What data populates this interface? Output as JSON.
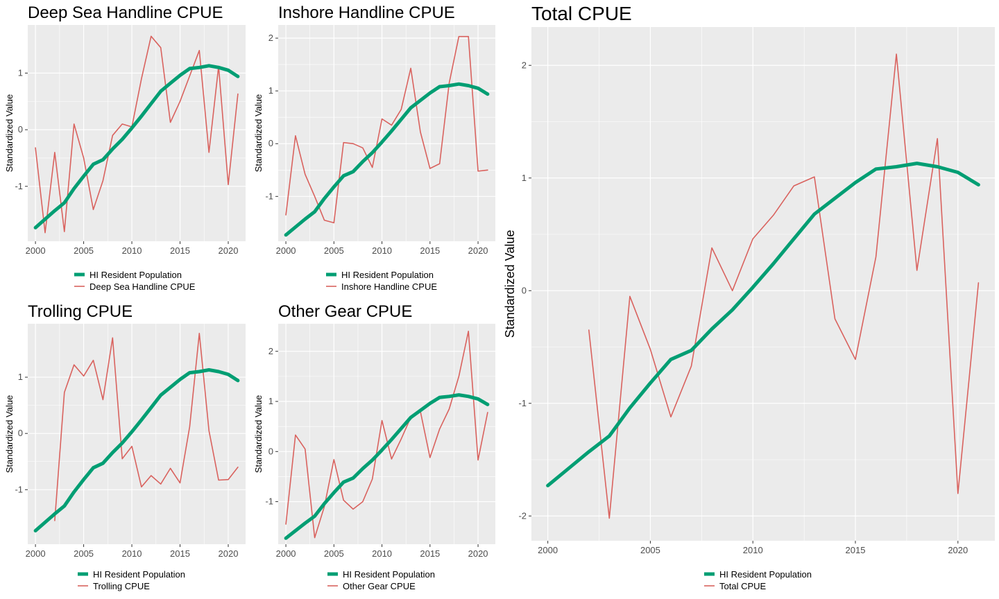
{
  "colors": {
    "population": "#009E73",
    "cpue": "#D9625E",
    "panel_bg": "#EBEBEB",
    "grid": "#FFFFFF",
    "tick_text": "#4D4D4D"
  },
  "chart_data": [
    {
      "type": "line",
      "title": "Deep Sea Handline CPUE",
      "ylabel": "Standardized Value",
      "xlabel": "",
      "xlim": [
        1999.2,
        2021.8
      ],
      "ylim": [
        -1.97,
        1.85
      ],
      "xticks": [
        2000,
        2005,
        2010,
        2015,
        2020
      ],
      "yticks": [
        -1,
        0,
        1
      ],
      "grid": true,
      "legend_position": "bottom",
      "series": [
        {
          "name": "HI Resident Population",
          "x": [
            2000,
            2001,
            2002,
            2003,
            2004,
            2005,
            2006,
            2007,
            2008,
            2009,
            2010,
            2011,
            2012,
            2013,
            2014,
            2015,
            2016,
            2017,
            2018,
            2019,
            2020,
            2021
          ],
          "values": [
            -1.73,
            -1.58,
            -1.43,
            -1.29,
            -1.04,
            -0.82,
            -0.61,
            -0.53,
            -0.34,
            -0.17,
            0.03,
            0.24,
            0.46,
            0.68,
            0.82,
            0.96,
            1.08,
            1.1,
            1.13,
            1.1,
            1.05,
            0.94
          ]
        },
        {
          "name": "Deep Sea Handline CPUE",
          "x": [
            2000,
            2001,
            2002,
            2003,
            2004,
            2005,
            2006,
            2007,
            2008,
            2009,
            2010,
            2011,
            2012,
            2013,
            2014,
            2015,
            2016,
            2017,
            2018,
            2019,
            2020,
            2021
          ],
          "values": [
            -0.32,
            -1.82,
            -0.4,
            -1.8,
            0.1,
            -0.5,
            -1.41,
            -0.9,
            -0.1,
            0.1,
            0.05,
            0.9,
            1.65,
            1.45,
            0.13,
            0.5,
            0.95,
            1.4,
            -0.4,
            1.12,
            -0.97,
            0.63
          ]
        }
      ]
    },
    {
      "type": "line",
      "title": "Inshore Handline CPUE",
      "ylabel": "Standardized Value",
      "xlabel": "",
      "xlim": [
        1999.2,
        2021.8
      ],
      "ylim": [
        -1.85,
        2.25
      ],
      "xticks": [
        2000,
        2005,
        2010,
        2015,
        2020
      ],
      "yticks": [
        -1,
        0,
        1,
        2
      ],
      "grid": true,
      "legend_position": "bottom",
      "series": [
        {
          "name": "HI Resident Population",
          "x": [
            2000,
            2001,
            2002,
            2003,
            2004,
            2005,
            2006,
            2007,
            2008,
            2009,
            2010,
            2011,
            2012,
            2013,
            2014,
            2015,
            2016,
            2017,
            2018,
            2019,
            2020,
            2021
          ],
          "values": [
            -1.73,
            -1.58,
            -1.43,
            -1.29,
            -1.04,
            -0.82,
            -0.61,
            -0.53,
            -0.34,
            -0.17,
            0.03,
            0.24,
            0.46,
            0.68,
            0.82,
            0.96,
            1.08,
            1.1,
            1.13,
            1.1,
            1.05,
            0.94
          ]
        },
        {
          "name": "Inshore Handline CPUE",
          "x": [
            2000,
            2001,
            2002,
            2003,
            2004,
            2005,
            2006,
            2007,
            2008,
            2009,
            2010,
            2011,
            2012,
            2013,
            2014,
            2015,
            2016,
            2017,
            2018,
            2019,
            2020,
            2021
          ],
          "values": [
            -1.35,
            0.15,
            -0.58,
            -1.0,
            -1.45,
            -1.5,
            0.02,
            0.0,
            -0.08,
            -0.45,
            0.47,
            0.35,
            0.65,
            1.43,
            0.22,
            -0.47,
            -0.38,
            1.15,
            2.03,
            2.03,
            -0.52,
            -0.5
          ]
        }
      ]
    },
    {
      "type": "line",
      "title": "Trolling CPUE",
      "ylabel": "Standardized Value",
      "xlabel": "",
      "xlim": [
        1999.2,
        2021.8
      ],
      "ylim": [
        -1.97,
        1.95
      ],
      "xticks": [
        2000,
        2005,
        2010,
        2015,
        2020
      ],
      "yticks": [
        -1,
        0,
        1
      ],
      "grid": true,
      "legend_position": "bottom",
      "series": [
        {
          "name": "HI Resident Population",
          "x": [
            2000,
            2001,
            2002,
            2003,
            2004,
            2005,
            2006,
            2007,
            2008,
            2009,
            2010,
            2011,
            2012,
            2013,
            2014,
            2015,
            2016,
            2017,
            2018,
            2019,
            2020,
            2021
          ],
          "values": [
            -1.73,
            -1.58,
            -1.43,
            -1.29,
            -1.04,
            -0.82,
            -0.61,
            -0.53,
            -0.34,
            -0.17,
            0.03,
            0.24,
            0.46,
            0.68,
            0.82,
            0.96,
            1.08,
            1.1,
            1.13,
            1.1,
            1.05,
            0.94
          ]
        },
        {
          "name": "Trolling CPUE",
          "x": [
            2002,
            2003,
            2004,
            2005,
            2006,
            2007,
            2008,
            2009,
            2010,
            2011,
            2012,
            2013,
            2014,
            2015,
            2016,
            2017,
            2018,
            2019,
            2020,
            2021
          ],
          "values": [
            -1.55,
            0.73,
            1.22,
            1.02,
            1.3,
            0.6,
            1.7,
            -0.45,
            -0.23,
            -0.95,
            -0.75,
            -0.9,
            -0.62,
            -0.88,
            0.12,
            1.78,
            0.05,
            -0.83,
            -0.82,
            -0.6
          ]
        }
      ]
    },
    {
      "type": "line",
      "title": "Other Gear CPUE",
      "ylabel": "Standardized Value",
      "xlabel": "",
      "xlim": [
        1999.2,
        2021.8
      ],
      "ylim": [
        -1.85,
        2.55
      ],
      "xticks": [
        2000,
        2005,
        2010,
        2015,
        2020
      ],
      "yticks": [
        -1,
        0,
        1,
        2
      ],
      "grid": true,
      "legend_position": "bottom",
      "series": [
        {
          "name": "HI Resident Population",
          "x": [
            2000,
            2001,
            2002,
            2003,
            2004,
            2005,
            2006,
            2007,
            2008,
            2009,
            2010,
            2011,
            2012,
            2013,
            2014,
            2015,
            2016,
            2017,
            2018,
            2019,
            2020,
            2021
          ],
          "values": [
            -1.73,
            -1.58,
            -1.43,
            -1.29,
            -1.04,
            -0.82,
            -0.61,
            -0.53,
            -0.34,
            -0.17,
            0.03,
            0.24,
            0.46,
            0.68,
            0.82,
            0.96,
            1.08,
            1.1,
            1.13,
            1.1,
            1.05,
            0.94
          ]
        },
        {
          "name": "Other Gear CPUE",
          "x": [
            2000,
            2001,
            2002,
            2003,
            2004,
            2005,
            2006,
            2007,
            2008,
            2009,
            2010,
            2011,
            2012,
            2013,
            2014,
            2015,
            2016,
            2017,
            2018,
            2019,
            2020,
            2021
          ],
          "values": [
            -1.45,
            0.33,
            0.05,
            -1.72,
            -1.1,
            -0.16,
            -0.97,
            -1.15,
            -1.0,
            -0.55,
            0.62,
            -0.15,
            0.25,
            0.68,
            0.8,
            -0.12,
            0.45,
            0.85,
            1.5,
            2.4,
            -0.17,
            0.78
          ]
        }
      ]
    },
    {
      "type": "line",
      "title": "Total CPUE",
      "ylabel": "Standardized Value",
      "xlabel": "",
      "xlim": [
        1999.2,
        2021.8
      ],
      "ylim": [
        -2.22,
        2.34
      ],
      "xticks": [
        2000,
        2005,
        2010,
        2015,
        2020
      ],
      "yticks": [
        -2,
        -1,
        0,
        1,
        2
      ],
      "grid": true,
      "legend_position": "bottom",
      "series": [
        {
          "name": "HI Resident Population",
          "x": [
            2000,
            2001,
            2002,
            2003,
            2004,
            2005,
            2006,
            2007,
            2008,
            2009,
            2010,
            2011,
            2012,
            2013,
            2014,
            2015,
            2016,
            2017,
            2018,
            2019,
            2020,
            2021
          ],
          "values": [
            -1.73,
            -1.58,
            -1.43,
            -1.29,
            -1.04,
            -0.82,
            -0.61,
            -0.53,
            -0.34,
            -0.17,
            0.03,
            0.24,
            0.46,
            0.68,
            0.82,
            0.96,
            1.08,
            1.1,
            1.13,
            1.1,
            1.05,
            0.94
          ]
        },
        {
          "name": "Total CPUE",
          "x": [
            2002,
            2003,
            2004,
            2005,
            2006,
            2007,
            2008,
            2009,
            2010,
            2011,
            2012,
            2013,
            2014,
            2015,
            2016,
            2017,
            2018,
            2019,
            2020,
            2021
          ],
          "values": [
            -0.35,
            -2.02,
            -0.05,
            -0.52,
            -1.12,
            -0.67,
            0.38,
            0.0,
            0.46,
            0.67,
            0.93,
            1.01,
            -0.25,
            -0.61,
            0.3,
            2.1,
            0.18,
            1.35,
            -1.8,
            0.07
          ]
        }
      ]
    }
  ]
}
